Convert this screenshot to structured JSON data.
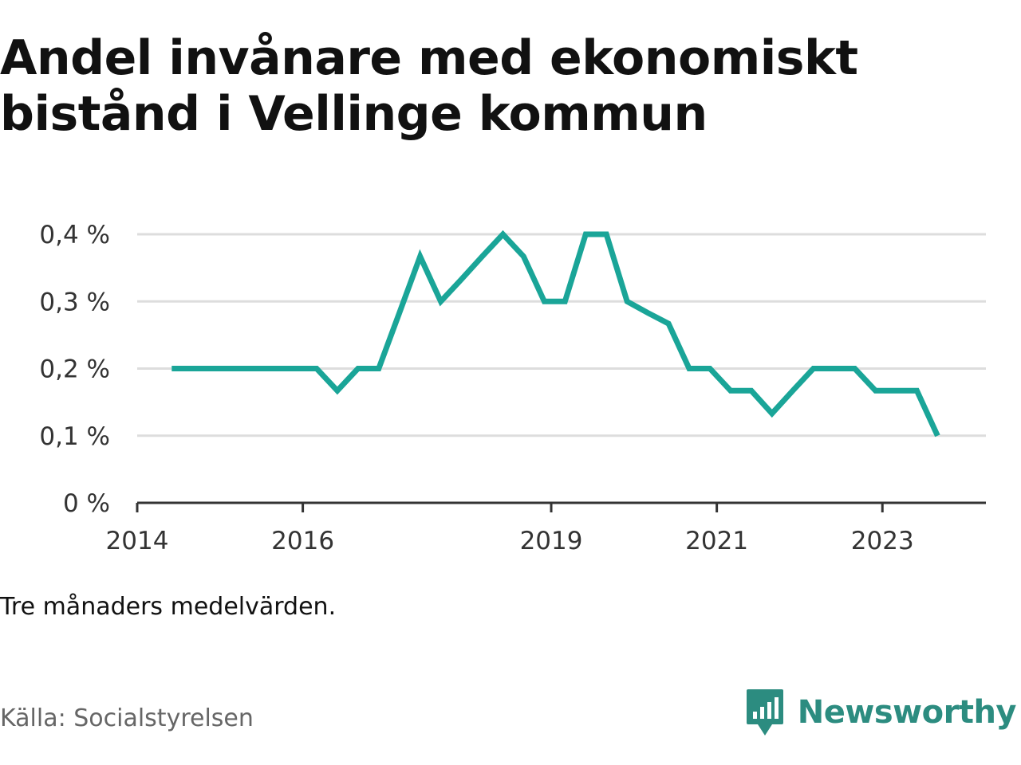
{
  "title": "Andel invånare med ekonomiskt bistånd i Vellinge kommun",
  "note": "Tre månaders medelvärden.",
  "source": "Källa: Socialstyrelsen",
  "brand": {
    "name": "Newsworthy",
    "icon": "newsworthy-logo-icon",
    "color": "#2c8c80"
  },
  "chart_data": {
    "type": "line",
    "title": "Andel invånare med ekonomiskt bistånd i Vellinge kommun",
    "xlabel": "",
    "ylabel": "",
    "ylim": [
      0,
      0.4
    ],
    "xlim": [
      2014.0,
      2024.25
    ],
    "grid": true,
    "legend": "none",
    "line_color": "#1aa598",
    "yticks": [
      {
        "value": 0,
        "label": "0 %"
      },
      {
        "value": 0.1,
        "label": "0,1 %"
      },
      {
        "value": 0.2,
        "label": "0,2 %"
      },
      {
        "value": 0.3,
        "label": "0,3 %"
      },
      {
        "value": 0.4,
        "label": "0,4 %"
      }
    ],
    "xticks": [
      {
        "value": 2014,
        "label": "2014"
      },
      {
        "value": 2016,
        "label": "2016"
      },
      {
        "value": 2019,
        "label": "2019"
      },
      {
        "value": 2021,
        "label": "2021"
      },
      {
        "value": 2023,
        "label": "2023"
      }
    ],
    "series": [
      {
        "x": [
          "2014-06",
          "2014-09",
          "2014-12",
          "2015-03",
          "2015-06",
          "2015-09",
          "2015-12",
          "2016-03",
          "2016-06",
          "2016-09",
          "2016-12",
          "2017-03",
          "2017-06",
          "2017-09",
          "2017-12",
          "2018-03",
          "2018-06",
          "2018-09",
          "2018-12",
          "2019-03",
          "2019-06",
          "2019-09",
          "2019-12",
          "2020-03",
          "2020-06",
          "2020-09",
          "2020-12",
          "2021-03",
          "2021-06",
          "2021-09",
          "2021-12",
          "2022-03",
          "2022-06",
          "2022-09",
          "2022-12",
          "2023-03",
          "2023-06",
          "2023-09"
        ],
        "values": [
          0.2,
          0.2,
          0.2,
          0.2,
          0.2,
          0.2,
          0.2,
          0.2,
          0.167,
          0.2,
          0.2,
          0.283,
          0.367,
          0.3,
          0.333,
          0.367,
          0.4,
          0.367,
          0.3,
          0.3,
          0.4,
          0.4,
          0.3,
          0.283,
          0.267,
          0.2,
          0.2,
          0.167,
          0.167,
          0.133,
          0.167,
          0.2,
          0.2,
          0.2,
          0.167,
          0.167,
          0.167,
          0.1
        ]
      }
    ]
  }
}
